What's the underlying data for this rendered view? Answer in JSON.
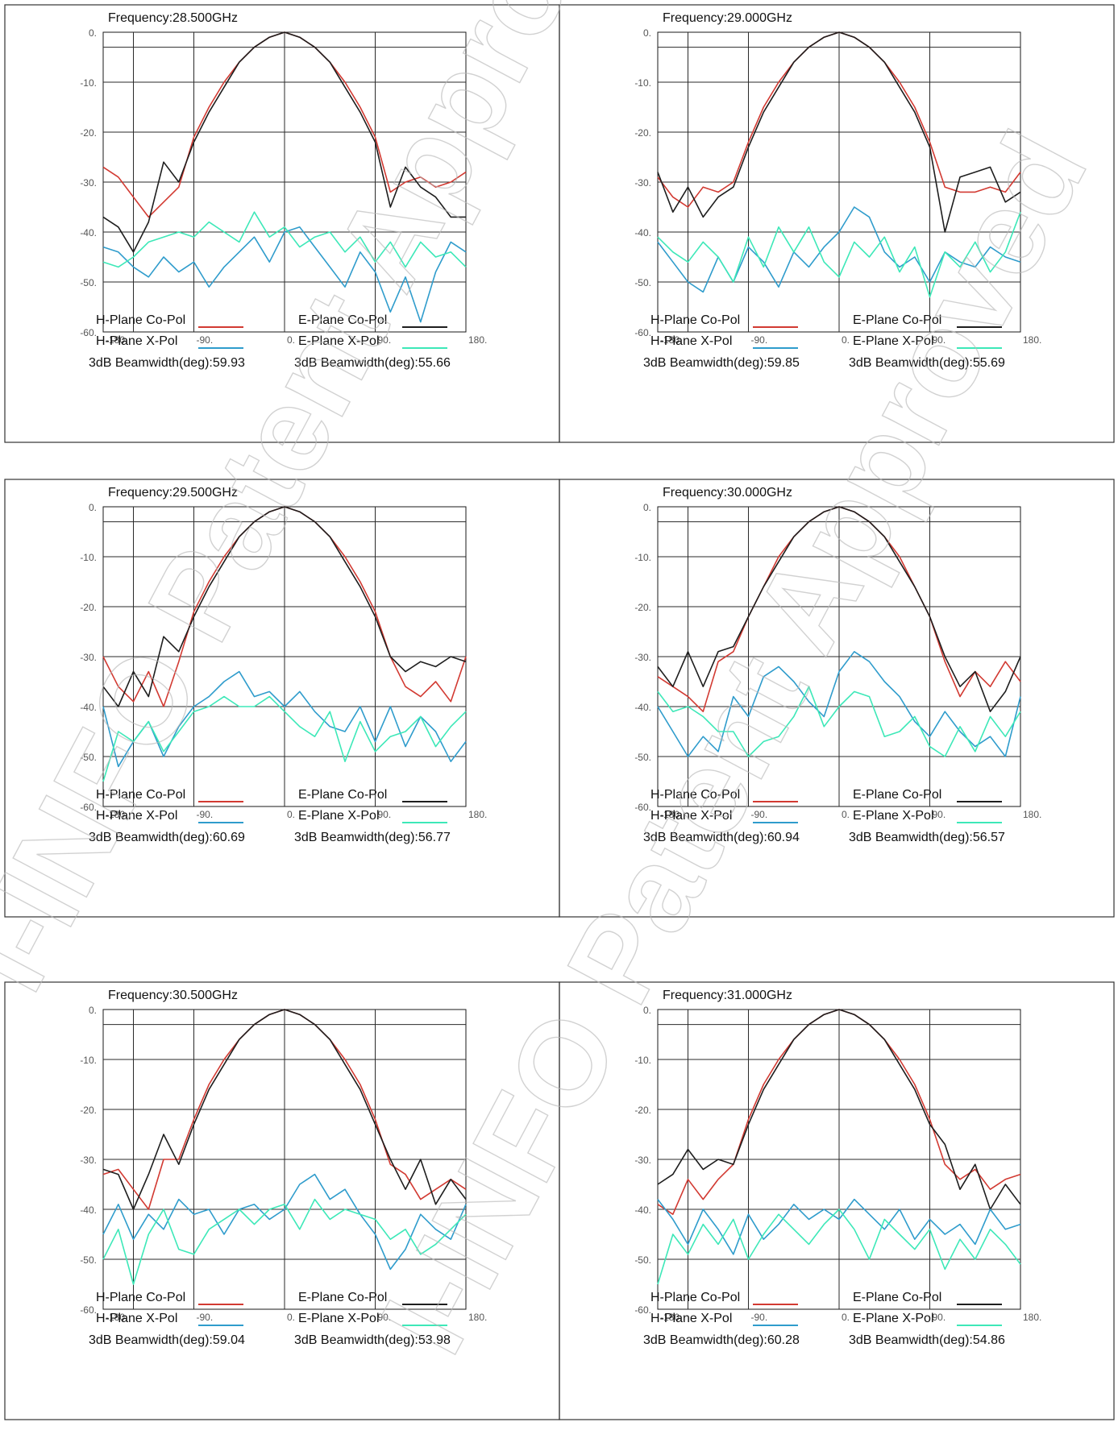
{
  "watermark": [
    "I-INFO Patent Approved",
    "I-INFO Patent Approved"
  ],
  "legend": {
    "h_co": "H-Plane Co-Pol",
    "e_co": "E-Plane Co-Pol",
    "h_x": "H-Plane X-Pol",
    "e_x": "E-Plane X-Pol"
  },
  "colors": {
    "h_co": "#d23a32",
    "e_co": "#1e1e1e",
    "h_x": "#2f9ccc",
    "e_x": "#3de8b8"
  },
  "panels": [
    {
      "frequency": "Frequency:28.500GHz",
      "h_beamwidth": "3dB Beamwidth(deg):59.93",
      "e_beamwidth": "3dB Beamwidth(deg):55.66"
    },
    {
      "frequency": "Frequency:29.000GHz",
      "h_beamwidth": "3dB Beamwidth(deg):59.85",
      "e_beamwidth": "3dB Beamwidth(deg):55.69"
    },
    {
      "frequency": "Frequency:29.500GHz",
      "h_beamwidth": "3dB Beamwidth(deg):60.69",
      "e_beamwidth": "3dB Beamwidth(deg):56.77"
    },
    {
      "frequency": "Frequency:30.000GHz",
      "h_beamwidth": "3dB Beamwidth(deg):60.94",
      "e_beamwidth": "3dB Beamwidth(deg):56.57"
    },
    {
      "frequency": "Frequency:30.500GHz",
      "h_beamwidth": "3dB Beamwidth(deg):59.04",
      "e_beamwidth": "3dB Beamwidth(deg):53.98"
    },
    {
      "frequency": "Frequency:31.000GHz",
      "h_beamwidth": "3dB Beamwidth(deg):60.28",
      "e_beamwidth": "3dB Beamwidth(deg):54.86"
    }
  ],
  "chart_data": [
    {
      "type": "line",
      "title": "Frequency:28.500GHz",
      "xlim": [
        -180,
        180
      ],
      "ylim": [
        -60,
        0
      ],
      "xticks": [
        "-180.",
        "-90.",
        "0.",
        "90.",
        "180."
      ],
      "yticks": [
        "0.",
        "-10.",
        "-20.",
        "-30.",
        "-40.",
        "-50.",
        "-60."
      ],
      "grid": true,
      "legend_position": "below",
      "x": [
        -180,
        -165,
        -150,
        -135,
        -120,
        -105,
        -90,
        -75,
        -60,
        -45,
        -30,
        -15,
        0,
        15,
        30,
        45,
        60,
        75,
        90,
        105,
        120,
        135,
        150,
        165,
        180
      ],
      "series": [
        {
          "name": "H-Plane Co-Pol",
          "values": [
            -27,
            -29,
            -33,
            -37,
            -34,
            -31,
            -21,
            -15,
            -10,
            -6,
            -3,
            -1,
            0,
            -1,
            -3,
            -6,
            -10,
            -15,
            -21,
            -32,
            -30,
            -29,
            -31,
            -30,
            -28
          ]
        },
        {
          "name": "E-Plane Co-Pol",
          "values": [
            -37,
            -39,
            -44,
            -38,
            -26,
            -30,
            -22,
            -16,
            -11,
            -6,
            -3,
            -1,
            0,
            -1,
            -3,
            -6,
            -11,
            -16,
            -22,
            -35,
            -27,
            -31,
            -33,
            -37,
            -37
          ]
        },
        {
          "name": "H-Plane X-Pol",
          "values": [
            -43,
            -44,
            -47,
            -49,
            -45,
            -48,
            -46,
            -51,
            -47,
            -44,
            -41,
            -46,
            -40,
            -39,
            -43,
            -47,
            -51,
            -44,
            -48,
            -56,
            -49,
            -58,
            -48,
            -42,
            -44
          ]
        },
        {
          "name": "E-Plane X-Pol",
          "values": [
            -46,
            -47,
            -45,
            -42,
            -41,
            -40,
            -41,
            -38,
            -40,
            -42,
            -36,
            -41,
            -39,
            -43,
            -41,
            -40,
            -44,
            -41,
            -46,
            -42,
            -47,
            -42,
            -45,
            -44,
            -47
          ]
        }
      ],
      "annotations": [
        "3dB Beamwidth(deg):59.93",
        "3dB Beamwidth(deg):55.66"
      ]
    },
    {
      "type": "line",
      "title": "Frequency:29.000GHz",
      "xlim": [
        -180,
        180
      ],
      "ylim": [
        -60,
        0
      ],
      "xticks": [
        "-180.",
        "-90.",
        "0.",
        "90.",
        "180."
      ],
      "yticks": [
        "0.",
        "-10.",
        "-20.",
        "-30.",
        "-40.",
        "-50.",
        "-60."
      ],
      "grid": true,
      "legend_position": "below",
      "x": [
        -180,
        -165,
        -150,
        -135,
        -120,
        -105,
        -90,
        -75,
        -60,
        -45,
        -30,
        -15,
        0,
        15,
        30,
        45,
        60,
        75,
        90,
        105,
        120,
        135,
        150,
        165,
        180
      ],
      "series": [
        {
          "name": "H-Plane Co-Pol",
          "values": [
            -29,
            -33,
            -35,
            -31,
            -32,
            -30,
            -22,
            -15,
            -10,
            -6,
            -3,
            -1,
            0,
            -1,
            -3,
            -6,
            -10,
            -15,
            -22,
            -31,
            -32,
            -32,
            -31,
            -32,
            -28
          ]
        },
        {
          "name": "E-Plane Co-Pol",
          "values": [
            -28,
            -36,
            -31,
            -37,
            -33,
            -31,
            -23,
            -16,
            -11,
            -6,
            -3,
            -1,
            0,
            -1,
            -3,
            -6,
            -11,
            -16,
            -23,
            -40,
            -29,
            -28,
            -27,
            -34,
            -32
          ]
        },
        {
          "name": "H-Plane X-Pol",
          "values": [
            -42,
            -46,
            -50,
            -52,
            -45,
            -50,
            -43,
            -46,
            -51,
            -44,
            -47,
            -43,
            -40,
            -35,
            -37,
            -44,
            -47,
            -45,
            -50,
            -44,
            -46,
            -47,
            -43,
            -45,
            -46
          ]
        },
        {
          "name": "E-Plane X-Pol",
          "values": [
            -41,
            -44,
            -46,
            -42,
            -45,
            -50,
            -41,
            -47,
            -39,
            -44,
            -39,
            -46,
            -49,
            -42,
            -45,
            -41,
            -48,
            -43,
            -53,
            -44,
            -47,
            -42,
            -48,
            -44,
            -36
          ]
        }
      ],
      "annotations": [
        "3dB Beamwidth(deg):59.85",
        "3dB Beamwidth(deg):55.69"
      ]
    },
    {
      "type": "line",
      "title": "Frequency:29.500GHz",
      "xlim": [
        -180,
        180
      ],
      "ylim": [
        -60,
        0
      ],
      "xticks": [
        "-180.",
        "-90.",
        "0.",
        "90.",
        "180."
      ],
      "yticks": [
        "0.",
        "-10.",
        "-20.",
        "-30.",
        "-40.",
        "-50.",
        "-60."
      ],
      "grid": true,
      "legend_position": "below",
      "x": [
        -180,
        -165,
        -150,
        -135,
        -120,
        -105,
        -90,
        -75,
        -60,
        -45,
        -30,
        -15,
        0,
        15,
        30,
        45,
        60,
        75,
        90,
        105,
        120,
        135,
        150,
        165,
        180
      ],
      "series": [
        {
          "name": "H-Plane Co-Pol",
          "values": [
            -30,
            -36,
            -39,
            -33,
            -40,
            -31,
            -21,
            -15,
            -10,
            -6,
            -3,
            -1,
            0,
            -1,
            -3,
            -6,
            -10,
            -15,
            -21,
            -30,
            -36,
            -38,
            -35,
            -39,
            -30
          ]
        },
        {
          "name": "E-Plane Co-Pol",
          "values": [
            -36,
            -40,
            -33,
            -38,
            -26,
            -29,
            -22,
            -16,
            -11,
            -6,
            -3,
            -1,
            0,
            -1,
            -3,
            -6,
            -11,
            -16,
            -22,
            -30,
            -33,
            -31,
            -32,
            -30,
            -31
          ]
        },
        {
          "name": "H-Plane X-Pol",
          "values": [
            -40,
            -52,
            -47,
            -43,
            -50,
            -44,
            -40,
            -38,
            -35,
            -33,
            -38,
            -37,
            -40,
            -37,
            -41,
            -44,
            -45,
            -40,
            -47,
            -40,
            -48,
            -42,
            -45,
            -51,
            -47
          ]
        },
        {
          "name": "E-Plane X-Pol",
          "values": [
            -55,
            -45,
            -47,
            -43,
            -49,
            -45,
            -41,
            -40,
            -38,
            -40,
            -40,
            -38,
            -41,
            -44,
            -46,
            -41,
            -51,
            -43,
            -49,
            -46,
            -45,
            -42,
            -48,
            -44,
            -41
          ]
        }
      ],
      "annotations": [
        "3dB Beamwidth(deg):60.69",
        "3dB Beamwidth(deg):56.77"
      ]
    },
    {
      "type": "line",
      "title": "Frequency:30.000GHz",
      "xlim": [
        -180,
        180
      ],
      "ylim": [
        -60,
        0
      ],
      "xticks": [
        "-180.",
        "-90.",
        "0.",
        "90.",
        "180."
      ],
      "yticks": [
        "0.",
        "-10.",
        "-20.",
        "-30.",
        "-40.",
        "-50.",
        "-60."
      ],
      "grid": true,
      "legend_position": "below",
      "x": [
        -180,
        -165,
        -150,
        -135,
        -120,
        -105,
        -90,
        -75,
        -60,
        -45,
        -30,
        -15,
        0,
        15,
        30,
        45,
        60,
        75,
        90,
        105,
        120,
        135,
        150,
        165,
        180
      ],
      "series": [
        {
          "name": "H-Plane Co-Pol",
          "values": [
            -34,
            -36,
            -38,
            -41,
            -31,
            -29,
            -22,
            -16,
            -10,
            -6,
            -3,
            -1,
            0,
            -1,
            -3,
            -6,
            -10,
            -16,
            -22,
            -31,
            -38,
            -33,
            -36,
            -31,
            -35
          ]
        },
        {
          "name": "E-Plane Co-Pol",
          "values": [
            -32,
            -36,
            -29,
            -36,
            -29,
            -28,
            -22,
            -16,
            -11,
            -6,
            -3,
            -1,
            0,
            -1,
            -3,
            -6,
            -11,
            -16,
            -22,
            -30,
            -36,
            -33,
            -41,
            -37,
            -30
          ]
        },
        {
          "name": "H-Plane X-Pol",
          "values": [
            -40,
            -45,
            -50,
            -46,
            -49,
            -38,
            -42,
            -34,
            -32,
            -35,
            -39,
            -42,
            -33,
            -29,
            -31,
            -35,
            -38,
            -43,
            -46,
            -41,
            -45,
            -48,
            -46,
            -50,
            -38
          ]
        },
        {
          "name": "E-Plane X-Pol",
          "values": [
            -37,
            -41,
            -40,
            -42,
            -45,
            -45,
            -50,
            -47,
            -46,
            -42,
            -36,
            -44,
            -40,
            -37,
            -38,
            -46,
            -45,
            -42,
            -48,
            -50,
            -44,
            -49,
            -42,
            -46,
            -41
          ]
        }
      ],
      "annotations": [
        "3dB Beamwidth(deg):60.94",
        "3dB Beamwidth(deg):56.57"
      ]
    },
    {
      "type": "line",
      "title": "Frequency:30.500GHz",
      "xlim": [
        -180,
        180
      ],
      "ylim": [
        -60,
        0
      ],
      "xticks": [
        "-180.",
        "-90.",
        "0.",
        "90.",
        "180."
      ],
      "yticks": [
        "0.",
        "-10.",
        "-20.",
        "-30.",
        "-40.",
        "-50.",
        "-60."
      ],
      "grid": true,
      "legend_position": "below",
      "x": [
        -180,
        -165,
        -150,
        -135,
        -120,
        -105,
        -90,
        -75,
        -60,
        -45,
        -30,
        -15,
        0,
        15,
        30,
        45,
        60,
        75,
        90,
        105,
        120,
        135,
        150,
        165,
        180
      ],
      "series": [
        {
          "name": "H-Plane Co-Pol",
          "values": [
            -33,
            -32,
            -36,
            -40,
            -30,
            -30,
            -22,
            -15,
            -10,
            -6,
            -3,
            -1,
            0,
            -1,
            -3,
            -6,
            -10,
            -15,
            -22,
            -31,
            -33,
            -38,
            -36,
            -34,
            -36
          ]
        },
        {
          "name": "E-Plane Co-Pol",
          "values": [
            -32,
            -33,
            -40,
            -33,
            -25,
            -31,
            -23,
            -16,
            -11,
            -6,
            -3,
            -1,
            0,
            -1,
            -3,
            -6,
            -11,
            -16,
            -23,
            -30,
            -36,
            -30,
            -39,
            -34,
            -38
          ]
        },
        {
          "name": "H-Plane X-Pol",
          "values": [
            -45,
            -39,
            -46,
            -41,
            -44,
            -38,
            -41,
            -40,
            -45,
            -40,
            -39,
            -42,
            -40,
            -35,
            -33,
            -38,
            -36,
            -41,
            -45,
            -52,
            -48,
            -41,
            -44,
            -46,
            -39
          ]
        },
        {
          "name": "E-Plane X-Pol",
          "values": [
            -50,
            -44,
            -55,
            -45,
            -40,
            -48,
            -49,
            -44,
            -42,
            -40,
            -43,
            -40,
            -39,
            -44,
            -38,
            -42,
            -40,
            -41,
            -42,
            -46,
            -44,
            -49,
            -47,
            -44,
            -41
          ]
        }
      ],
      "annotations": [
        "3dB Beamwidth(deg):59.04",
        "3dB Beamwidth(deg):53.98"
      ]
    },
    {
      "type": "line",
      "title": "Frequency:31.000GHz",
      "xlim": [
        -180,
        180
      ],
      "ylim": [
        -60,
        0
      ],
      "xticks": [
        "-180.",
        "-90.",
        "0.",
        "90.",
        "180."
      ],
      "yticks": [
        "0.",
        "-10.",
        "-20.",
        "-30.",
        "-40.",
        "-50.",
        "-60."
      ],
      "grid": true,
      "legend_position": "below",
      "x": [
        -180,
        -165,
        -150,
        -135,
        -120,
        -105,
        -90,
        -75,
        -60,
        -45,
        -30,
        -15,
        0,
        15,
        30,
        45,
        60,
        75,
        90,
        105,
        120,
        135,
        150,
        165,
        180
      ],
      "series": [
        {
          "name": "H-Plane Co-Pol",
          "values": [
            -39,
            -41,
            -34,
            -38,
            -34,
            -31,
            -22,
            -15,
            -10,
            -6,
            -3,
            -1,
            0,
            -1,
            -3,
            -6,
            -10,
            -15,
            -22,
            -31,
            -34,
            -32,
            -36,
            -34,
            -33
          ]
        },
        {
          "name": "E-Plane Co-Pol",
          "values": [
            -35,
            -33,
            -28,
            -32,
            -30,
            -31,
            -23,
            -16,
            -11,
            -6,
            -3,
            -1,
            0,
            -1,
            -3,
            -6,
            -11,
            -16,
            -23,
            -27,
            -36,
            -31,
            -40,
            -35,
            -39
          ]
        },
        {
          "name": "H-Plane X-Pol",
          "values": [
            -38,
            -42,
            -47,
            -40,
            -44,
            -49,
            -41,
            -46,
            -43,
            -39,
            -42,
            -40,
            -42,
            -38,
            -41,
            -44,
            -40,
            -46,
            -42,
            -45,
            -43,
            -47,
            -40,
            -44,
            -43
          ]
        },
        {
          "name": "E-Plane X-Pol",
          "values": [
            -55,
            -45,
            -49,
            -43,
            -47,
            -42,
            -50,
            -45,
            -41,
            -44,
            -47,
            -43,
            -40,
            -44,
            -50,
            -42,
            -45,
            -48,
            -44,
            -52,
            -46,
            -50,
            -44,
            -47,
            -51
          ]
        }
      ],
      "annotations": [
        "3dB Beamwidth(deg):60.28",
        "3dB Beamwidth(deg):54.86"
      ]
    }
  ]
}
